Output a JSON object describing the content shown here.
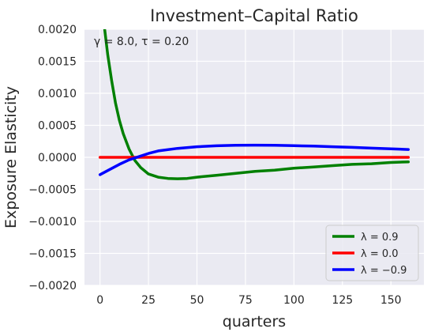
{
  "chart_data": {
    "type": "line",
    "title": "Investment–Capital Ratio",
    "xlabel": "quarters",
    "ylabel": "Exposure Elasticity",
    "annotation": "γ = 8.0, τ = 0.20",
    "xlim": [
      -8,
      167
    ],
    "ylim": [
      -0.002,
      0.002
    ],
    "xticks": [
      0,
      25,
      50,
      75,
      100,
      125,
      150
    ],
    "xtick_labels": [
      "0",
      "25",
      "50",
      "75",
      "100",
      "125",
      "150"
    ],
    "yticks": [
      -0.002,
      -0.0015,
      -0.001,
      -0.0005,
      0.0,
      0.0005,
      0.001,
      0.0015,
      0.002
    ],
    "ytick_labels": [
      "−0.0020",
      "−0.0015",
      "−0.0010",
      "−0.0005",
      "0.0000",
      "0.0005",
      "0.0010",
      "0.0015",
      "0.0020"
    ],
    "grid": true,
    "legend_position": "lower-right",
    "series": [
      {
        "name": "λ = 0.9",
        "color": "#008000",
        "x": [
          0,
          2,
          4,
          6,
          8,
          10,
          12,
          15,
          18,
          21,
          25,
          30,
          35,
          40,
          45,
          50,
          60,
          70,
          80,
          90,
          100,
          110,
          120,
          130,
          140,
          150,
          159
        ],
        "y": [
          0.0028,
          0.0021,
          0.0016,
          0.0012,
          0.00085,
          0.00058,
          0.00037,
          0.00013,
          -5e-05,
          -0.00016,
          -0.00026,
          -0.00031,
          -0.00033,
          -0.000335,
          -0.00033,
          -0.00031,
          -0.00028,
          -0.00025,
          -0.00022,
          -0.0002,
          -0.00017,
          -0.00015,
          -0.00013,
          -0.00011,
          -0.0001,
          -8e-05,
          -7e-05
        ]
      },
      {
        "name": "λ = 0.0",
        "color": "#ff0000",
        "x": [
          0,
          159
        ],
        "y": [
          0.0,
          0.0
        ]
      },
      {
        "name": "λ = −0.9",
        "color": "#0000ff",
        "x": [
          0,
          5,
          10,
          15,
          20,
          25,
          30,
          40,
          50,
          60,
          70,
          80,
          90,
          100,
          110,
          120,
          130,
          140,
          150,
          159
        ],
        "y": [
          -0.00027,
          -0.00019,
          -0.00011,
          -4e-05,
          1e-05,
          6e-05,
          0.0001,
          0.00014,
          0.000165,
          0.00018,
          0.000188,
          0.00019,
          0.000188,
          0.000182,
          0.000175,
          0.000165,
          0.000155,
          0.000143,
          0.000132,
          0.000122
        ]
      }
    ]
  }
}
